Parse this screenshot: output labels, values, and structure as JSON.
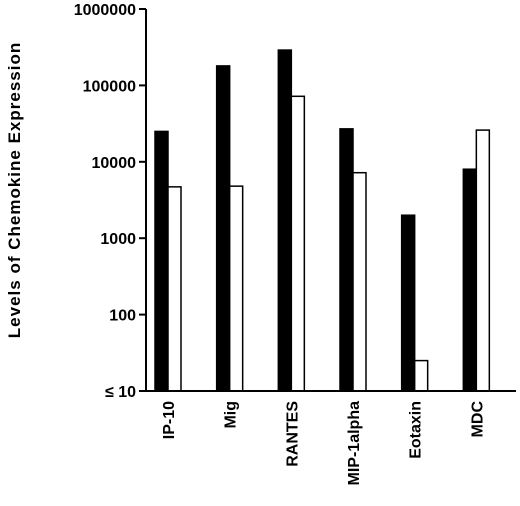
{
  "chart_data": {
    "type": "bar",
    "scale": "log",
    "title": "",
    "xlabel": "",
    "ylabel": "Levels of Chemokine Expression",
    "ylim": [
      10,
      1000000
    ],
    "y_ticks": [
      {
        "value": 10,
        "label": "≤ 10"
      },
      {
        "value": 100,
        "label": "100"
      },
      {
        "value": 1000,
        "label": "1000"
      },
      {
        "value": 10000,
        "label": "10000"
      },
      {
        "value": 100000,
        "label": "100000"
      },
      {
        "value": 1000000,
        "label": "1000000"
      }
    ],
    "categories": [
      "IP-10",
      "Mig",
      "RANTES",
      "MIP-1alpha",
      "Eotaxin",
      "MDC"
    ],
    "series": [
      {
        "fill": "#000000",
        "values": [
          25000,
          180000,
          290000,
          27000,
          2000,
          8000
        ]
      },
      {
        "fill": "#ffffff",
        "values": [
          4700,
          4800,
          72000,
          7200,
          25,
          26000
        ]
      }
    ],
    "grid": false,
    "legend": "none"
  }
}
